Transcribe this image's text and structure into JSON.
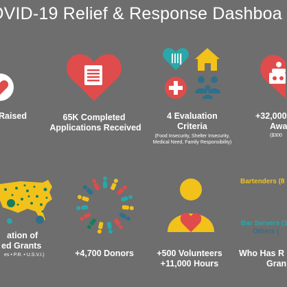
{
  "dashboard": {
    "title": "OVID-19 Relief & Response Dashboa",
    "accent_red": "#e04b4b",
    "accent_yellow": "#f2c21b",
    "accent_teal": "#2aa7a8",
    "accent_green": "#1a7c5b",
    "background": "#6e6e6e"
  },
  "stats": {
    "raised_label": "Raised",
    "applications_line1": "65K Completed",
    "applications_line2": "Applications Received",
    "criteria_line1": "4 Evaluation",
    "criteria_line2": "Criteria",
    "criteria_note_line1": "(Food Insecurity, Shelter Insecurity,",
    "criteria_note_line2": "Medical Need, Family Responsibility)",
    "awards_line1": "+32,000",
    "awards_line2": "Awa",
    "awards_note": "($300",
    "location_line1": "ation of",
    "location_line2": "ed Grants",
    "location_note": "es • P.R. • U.S.V.I.)",
    "donors": "+4,700 Donors",
    "volunteers": "+500 Volunteers",
    "hours": "+11,000 Hours",
    "who_line1": "Who Has R",
    "who_line2": "Gran"
  },
  "legend": {
    "bartenders": "Bartenders (8",
    "bar_servers": "Bar Servers (1",
    "others": "Others ("
  },
  "icons": [
    "heart-icon",
    "document-icon",
    "food-icon",
    "house-icon",
    "medical-cross-icon",
    "family-icon",
    "award-icon",
    "us-map-icon",
    "people-circle-icon",
    "volunteer-icon"
  ]
}
